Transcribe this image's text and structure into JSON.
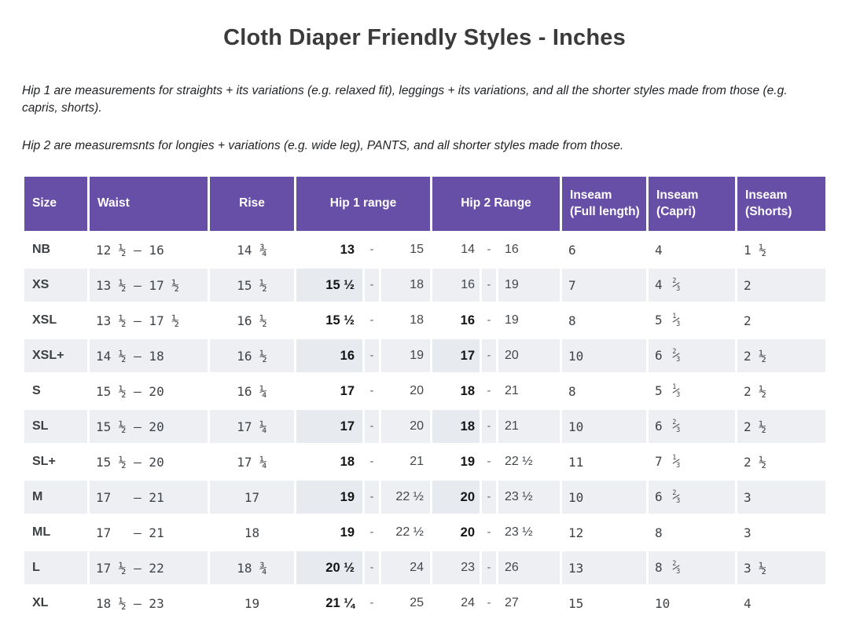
{
  "title": "Cloth Diaper Friendly Styles - Inches",
  "notes": [
    "Hip 1 are measurements for straights + its variations (e.g. relaxed fit), leggings + its variations, and all the shorter styles made from those (e.g. capris, shorts).",
    "Hip 2 are measuremsnts for longies + variations (e.g. wide leg), PANTS, and all shorter styles made from those."
  ],
  "colors": {
    "header_bg": "#674ea7",
    "header_text": "#ffffff",
    "row_alt_bg": "#edeff2",
    "row_bg": "#ffffff",
    "highlight_bg": "#e7eaee",
    "text": "#3f4347",
    "bold_text": "#141517"
  },
  "table": {
    "range_separator": "-",
    "headers": {
      "size": "Size",
      "waist": "Waist",
      "rise": "Rise",
      "hip1": "Hip 1 range",
      "hip2": "Hip 2 Range",
      "inseam_full": "Inseam (Full length)",
      "inseam_capri": "Inseam (Capri)",
      "inseam_shorts": "Inseam (Shorts)"
    },
    "rows": [
      {
        "size": "NB",
        "waist": "12 ½ – 16",
        "rise": "14 ¾",
        "hip1": {
          "min": "13",
          "max": "15",
          "min_bold": true
        },
        "hip2": {
          "min": "14",
          "max": "16",
          "min_bold": false
        },
        "inseam_full": "6",
        "inseam_capri": "4",
        "inseam_shorts": "1 ½"
      },
      {
        "size": "XS",
        "waist": "13 ½ – 17 ½",
        "rise": "15 ½",
        "hip1": {
          "min": "15 ½",
          "max": "18",
          "min_bold": true
        },
        "hip2": {
          "min": "16",
          "max": "19",
          "min_bold": false
        },
        "inseam_full": "7",
        "inseam_capri": "4 ⅔",
        "inseam_shorts": "2"
      },
      {
        "size": "XSL",
        "waist": "13 ½ – 17 ½",
        "rise": "16 ½",
        "hip1": {
          "min": "15 ½",
          "max": "18",
          "min_bold": true
        },
        "hip2": {
          "min": "16",
          "max": "19",
          "min_bold": true
        },
        "inseam_full": "8",
        "inseam_capri": "5 ⅓",
        "inseam_shorts": "2"
      },
      {
        "size": "XSL+",
        "waist": "14 ½ – 18",
        "rise": "16 ½",
        "hip1": {
          "min": "16",
          "max": "19",
          "min_bold": true
        },
        "hip2": {
          "min": "17",
          "max": "20",
          "min_bold": true
        },
        "inseam_full": "10",
        "inseam_capri": "6 ⅔",
        "inseam_shorts": "2 ½"
      },
      {
        "size": "S",
        "waist": "15 ½ – 20",
        "rise": "16 ¼",
        "hip1": {
          "min": "17",
          "max": "20",
          "min_bold": true
        },
        "hip2": {
          "min": "18",
          "max": "21",
          "min_bold": true
        },
        "inseam_full": "8",
        "inseam_capri": "5 ⅓",
        "inseam_shorts": "2 ½"
      },
      {
        "size": "SL",
        "waist": "15 ½ – 20",
        "rise": "17 ¼",
        "hip1": {
          "min": "17",
          "max": "20",
          "min_bold": true
        },
        "hip2": {
          "min": "18",
          "max": "21",
          "min_bold": true
        },
        "inseam_full": "10",
        "inseam_capri": "6 ⅔",
        "inseam_shorts": "2 ½"
      },
      {
        "size": "SL+",
        "waist": "15 ½ – 20",
        "rise": "17 ¼",
        "hip1": {
          "min": "18",
          "max": "21",
          "min_bold": true
        },
        "hip2": {
          "min": "19",
          "max": "22 ½",
          "min_bold": true
        },
        "inseam_full": "11",
        "inseam_capri": "7 ⅓",
        "inseam_shorts": "2 ½"
      },
      {
        "size": "M",
        "waist": "17   – 21",
        "rise": "17",
        "hip1": {
          "min": "19",
          "max": "22 ½",
          "min_bold": true
        },
        "hip2": {
          "min": "20",
          "max": "23 ½",
          "min_bold": true
        },
        "inseam_full": "10",
        "inseam_capri": "6 ⅔",
        "inseam_shorts": "3"
      },
      {
        "size": "ML",
        "waist": "17   – 21",
        "rise": "18",
        "hip1": {
          "min": "19",
          "max": "22 ½",
          "min_bold": true
        },
        "hip2": {
          "min": "20",
          "max": "23 ½",
          "min_bold": true
        },
        "inseam_full": "12",
        "inseam_capri": "8",
        "inseam_shorts": "3"
      },
      {
        "size": "L",
        "waist": "17 ½ – 22",
        "rise": "18 ¾",
        "hip1": {
          "min": "20 ½",
          "max": "24",
          "min_bold": true
        },
        "hip2": {
          "min": "23",
          "max": "26",
          "min_bold": false
        },
        "inseam_full": "13",
        "inseam_capri": "8 ⅔",
        "inseam_shorts": "3 ½"
      },
      {
        "size": "XL",
        "waist": "18 ½ – 23",
        "rise": "19",
        "hip1": {
          "min": "21 ¼",
          "max": "25",
          "min_bold": true
        },
        "hip2": {
          "min": "24",
          "max": "27",
          "min_bold": false
        },
        "inseam_full": "15",
        "inseam_capri": "10",
        "inseam_shorts": "4"
      }
    ]
  }
}
